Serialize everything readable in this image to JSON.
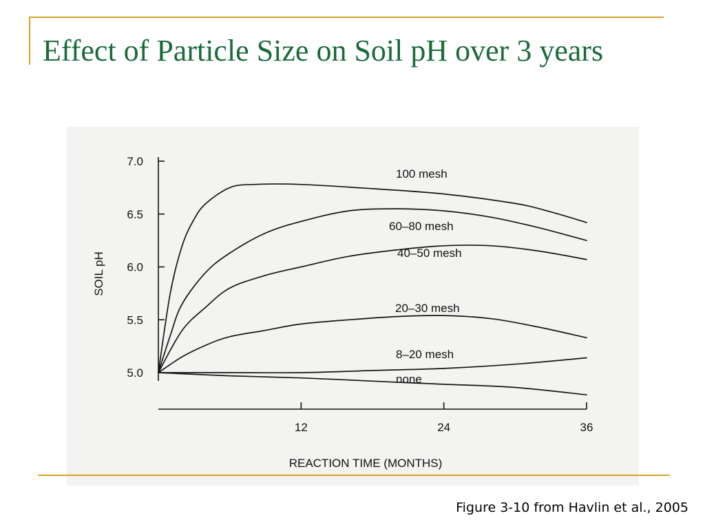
{
  "slide": {
    "title": "Effect of Particle Size on Soil pH over 3 years",
    "caption": "Figure 3-10 from Havlin et al., 2005",
    "accent_color": "#d9a21f",
    "title_color": "#1a6b3a"
  },
  "chart_data": {
    "type": "line",
    "xlabel": "REACTION TIME (MONTHS)",
    "ylabel": "SOIL pH",
    "xlim": [
      0,
      36
    ],
    "ylim": [
      4.9,
      7.0
    ],
    "xticks": [
      12,
      24,
      36
    ],
    "yticks": [
      5.0,
      5.5,
      6.0,
      6.5,
      7.0
    ],
    "xtick_labels": [
      "12",
      "24",
      "36"
    ],
    "ytick_labels": [
      "5.0",
      "5.5",
      "6.0",
      "6.5",
      "7.0"
    ],
    "grid": false,
    "series": [
      {
        "name": "100 mesh",
        "x": [
          0,
          1,
          2,
          3,
          4,
          6,
          8,
          12,
          18,
          24,
          30,
          33,
          36
        ],
        "y": [
          5.0,
          5.75,
          6.2,
          6.45,
          6.6,
          6.75,
          6.78,
          6.78,
          6.74,
          6.69,
          6.6,
          6.52,
          6.42
        ]
      },
      {
        "name": "60–80 mesh",
        "x": [
          0,
          1,
          2,
          4,
          6,
          9,
          12,
          16,
          20,
          24,
          28,
          32,
          36
        ],
        "y": [
          5.0,
          5.35,
          5.65,
          5.95,
          6.13,
          6.32,
          6.43,
          6.53,
          6.55,
          6.53,
          6.47,
          6.37,
          6.25
        ]
      },
      {
        "name": "40–50 mesh",
        "x": [
          0,
          2,
          4,
          6,
          9,
          12,
          16,
          20,
          24,
          28,
          32,
          36
        ],
        "y": [
          5.0,
          5.4,
          5.62,
          5.8,
          5.92,
          6.0,
          6.1,
          6.16,
          6.2,
          6.2,
          6.15,
          6.07
        ]
      },
      {
        "name": "20–30 mesh",
        "x": [
          0,
          2,
          4,
          6,
          9,
          12,
          16,
          20,
          24,
          28,
          32,
          36
        ],
        "y": [
          5.0,
          5.15,
          5.26,
          5.34,
          5.4,
          5.46,
          5.5,
          5.53,
          5.54,
          5.51,
          5.43,
          5.33
        ]
      },
      {
        "name": "8–20 mesh",
        "x": [
          0,
          6,
          12,
          18,
          24,
          30,
          36
        ],
        "y": [
          5.0,
          5.0,
          5.0,
          5.02,
          5.04,
          5.08,
          5.14
        ]
      },
      {
        "name": "none",
        "x": [
          0,
          6,
          12,
          18,
          24,
          30,
          36
        ],
        "y": [
          5.0,
          4.97,
          4.95,
          4.92,
          4.89,
          4.86,
          4.79
        ]
      }
    ]
  }
}
